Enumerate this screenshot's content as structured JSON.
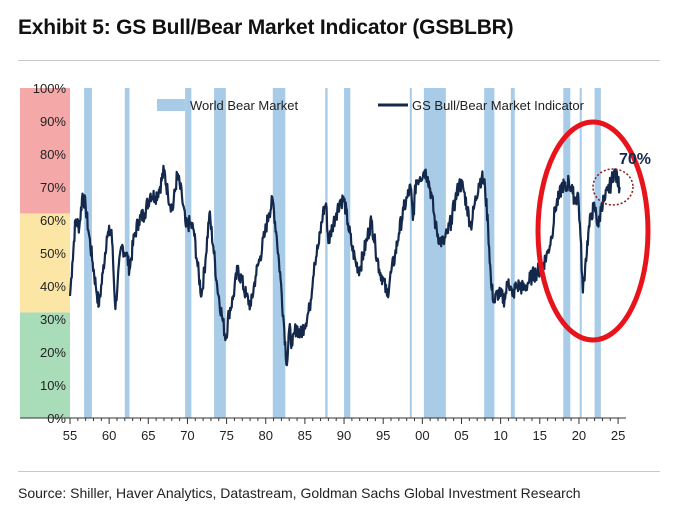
{
  "title": "Exhibit 5: GS Bull/Bear Market Indicator (GSBLBR)",
  "source": "Source: Shiller, Haver Analytics, Datastream, Goldman Sachs Global Investment Research",
  "colors": {
    "band_high": "#f4a9a8",
    "band_mid": "#fbe6a6",
    "band_low": "#a9dcb9",
    "bear_bar": "#a8cbe8",
    "line": "#14284b",
    "highlight_circle": "#e8141c",
    "small_circle": "#8b1a1a"
  },
  "chart_data": {
    "type": "line",
    "title": "Exhibit 5: GS Bull/Bear Market Indicator (GSBLBR)",
    "xlabel": "",
    "ylabel": "",
    "xlim": [
      1955,
      2025.5
    ],
    "ylim": [
      0,
      100
    ],
    "x_ticks": [
      {
        "value": 1955,
        "label": "55"
      },
      {
        "value": 1960,
        "label": "60"
      },
      {
        "value": 1965,
        "label": "65"
      },
      {
        "value": 1970,
        "label": "70"
      },
      {
        "value": 1975,
        "label": "75"
      },
      {
        "value": 1980,
        "label": "80"
      },
      {
        "value": 1985,
        "label": "85"
      },
      {
        "value": 1990,
        "label": "90"
      },
      {
        "value": 1995,
        "label": "95"
      },
      {
        "value": 2000,
        "label": "00"
      },
      {
        "value": 2005,
        "label": "05"
      },
      {
        "value": 2010,
        "label": "10"
      },
      {
        "value": 2015,
        "label": "15"
      },
      {
        "value": 2020,
        "label": "20"
      },
      {
        "value": 2025,
        "label": "25"
      }
    ],
    "y_ticks": [
      {
        "value": 0,
        "label": "0%"
      },
      {
        "value": 10,
        "label": "10%"
      },
      {
        "value": 20,
        "label": "20%"
      },
      {
        "value": 30,
        "label": "30%"
      },
      {
        "value": 40,
        "label": "40%"
      },
      {
        "value": 50,
        "label": "50%"
      },
      {
        "value": 60,
        "label": "60%"
      },
      {
        "value": 70,
        "label": "70%"
      },
      {
        "value": 80,
        "label": "80%"
      },
      {
        "value": 90,
        "label": "90%"
      },
      {
        "value": 100,
        "label": "100%"
      }
    ],
    "zones": [
      {
        "name": "bear zone",
        "from": 0,
        "to": 32
      },
      {
        "name": "neutral zone",
        "from": 32,
        "to": 62
      },
      {
        "name": "bull zone",
        "from": 62,
        "to": 100
      }
    ],
    "legend": {
      "position": "top",
      "items": [
        {
          "label": "World Bear Market",
          "kind": "bar"
        },
        {
          "label": "GS Bull/Bear Market Indicator",
          "kind": "line"
        }
      ]
    },
    "bear_markets": [
      [
        1956.8,
        1957.8
      ],
      [
        1962.0,
        1962.6
      ],
      [
        1969.7,
        1970.5
      ],
      [
        1973.4,
        1974.9
      ],
      [
        1980.9,
        1982.5
      ],
      [
        1987.6,
        1987.9
      ],
      [
        1990.0,
        1990.8
      ],
      [
        1998.4,
        1998.6
      ],
      [
        2000.2,
        2003.0
      ],
      [
        2007.9,
        2009.2
      ],
      [
        2011.3,
        2011.8
      ],
      [
        2018.0,
        2018.9
      ],
      [
        2020.1,
        2020.3
      ],
      [
        2022.0,
        2022.8
      ]
    ],
    "series": [
      {
        "name": "GS Bull/Bear Market Indicator",
        "points": [
          [
            1955.0,
            37
          ],
          [
            1955.3,
            47
          ],
          [
            1955.7,
            60
          ],
          [
            1956.2,
            58
          ],
          [
            1956.6,
            68
          ],
          [
            1957.0,
            64
          ],
          [
            1957.4,
            56
          ],
          [
            1957.9,
            47
          ],
          [
            1958.3,
            40
          ],
          [
            1958.7,
            34
          ],
          [
            1959.2,
            44
          ],
          [
            1959.7,
            55
          ],
          [
            1960.3,
            57
          ],
          [
            1960.8,
            33
          ],
          [
            1961.1,
            42
          ],
          [
            1961.6,
            52
          ],
          [
            1962.2,
            50
          ],
          [
            1962.6,
            45
          ],
          [
            1963.2,
            55
          ],
          [
            1963.8,
            60
          ],
          [
            1964.5,
            62
          ],
          [
            1965.3,
            68
          ],
          [
            1965.9,
            67
          ],
          [
            1966.5,
            70
          ],
          [
            1967.0,
            75
          ],
          [
            1967.5,
            68
          ],
          [
            1968.1,
            63
          ],
          [
            1968.7,
            74
          ],
          [
            1969.3,
            67
          ],
          [
            1969.8,
            58
          ],
          [
            1970.3,
            59
          ],
          [
            1970.8,
            57
          ],
          [
            1971.3,
            46
          ],
          [
            1971.8,
            37
          ],
          [
            1972.3,
            48
          ],
          [
            1972.8,
            62
          ],
          [
            1973.3,
            52
          ],
          [
            1973.8,
            40
          ],
          [
            1974.4,
            31
          ],
          [
            1974.9,
            24
          ],
          [
            1975.3,
            32
          ],
          [
            1975.8,
            36
          ],
          [
            1976.4,
            45
          ],
          [
            1976.9,
            42
          ],
          [
            1977.5,
            37
          ],
          [
            1978.1,
            34
          ],
          [
            1978.7,
            43
          ],
          [
            1979.3,
            49
          ],
          [
            1979.9,
            56
          ],
          [
            1980.4,
            62
          ],
          [
            1980.9,
            66
          ],
          [
            1981.4,
            55
          ],
          [
            1981.9,
            42
          ],
          [
            1982.3,
            29
          ],
          [
            1982.7,
            16
          ],
          [
            1983.0,
            27
          ],
          [
            1983.4,
            22
          ],
          [
            1983.9,
            28
          ],
          [
            1984.4,
            25
          ],
          [
            1984.9,
            28
          ],
          [
            1985.6,
            33
          ],
          [
            1986.2,
            47
          ],
          [
            1986.8,
            53
          ],
          [
            1987.3,
            62
          ],
          [
            1987.7,
            65
          ],
          [
            1988.0,
            53
          ],
          [
            1988.5,
            58
          ],
          [
            1989.0,
            62
          ],
          [
            1989.5,
            66
          ],
          [
            1990.0,
            66
          ],
          [
            1990.5,
            59
          ],
          [
            1991.0,
            52
          ],
          [
            1991.5,
            47
          ],
          [
            1992.0,
            45
          ],
          [
            1992.5,
            50
          ],
          [
            1993.0,
            55
          ],
          [
            1993.5,
            60
          ],
          [
            1994.0,
            52
          ],
          [
            1994.5,
            45
          ],
          [
            1995.0,
            42
          ],
          [
            1995.5,
            37
          ],
          [
            1996.0,
            44
          ],
          [
            1996.5,
            49
          ],
          [
            1997.0,
            56
          ],
          [
            1997.6,
            63
          ],
          [
            1998.1,
            67
          ],
          [
            1998.5,
            70
          ],
          [
            1998.8,
            60
          ],
          [
            1999.2,
            72
          ],
          [
            1999.7,
            73
          ],
          [
            2000.3,
            75
          ],
          [
            2000.7,
            73
          ],
          [
            2001.2,
            67
          ],
          [
            2001.7,
            58
          ],
          [
            2002.2,
            54
          ],
          [
            2002.7,
            53
          ],
          [
            2003.2,
            56
          ],
          [
            2003.7,
            60
          ],
          [
            2004.2,
            66
          ],
          [
            2004.7,
            71
          ],
          [
            2005.2,
            70
          ],
          [
            2005.7,
            64
          ],
          [
            2006.2,
            58
          ],
          [
            2006.7,
            65
          ],
          [
            2007.2,
            71
          ],
          [
            2007.6,
            73
          ],
          [
            2008.0,
            70
          ],
          [
            2008.4,
            58
          ],
          [
            2008.8,
            40
          ],
          [
            2009.2,
            35
          ],
          [
            2009.6,
            38
          ],
          [
            2010.0,
            37
          ],
          [
            2010.5,
            36
          ],
          [
            2011.0,
            42
          ],
          [
            2011.5,
            37
          ],
          [
            2012.0,
            40
          ],
          [
            2012.5,
            40
          ],
          [
            2013.0,
            39
          ],
          [
            2013.5,
            41
          ],
          [
            2014.0,
            43
          ],
          [
            2014.5,
            44
          ],
          [
            2015.0,
            45
          ],
          [
            2015.5,
            47
          ],
          [
            2016.0,
            50
          ],
          [
            2016.5,
            55
          ],
          [
            2017.0,
            64
          ],
          [
            2017.5,
            67
          ],
          [
            2017.9,
            71
          ],
          [
            2018.3,
            69
          ],
          [
            2018.7,
            72
          ],
          [
            2019.2,
            68
          ],
          [
            2019.6,
            66
          ],
          [
            2019.9,
            68
          ],
          [
            2020.2,
            55
          ],
          [
            2020.5,
            38
          ],
          [
            2020.8,
            46
          ],
          [
            2021.2,
            56
          ],
          [
            2021.6,
            62
          ],
          [
            2022.0,
            64
          ],
          [
            2022.5,
            58
          ],
          [
            2022.9,
            65
          ],
          [
            2023.3,
            66
          ],
          [
            2023.7,
            69
          ],
          [
            2024.1,
            71
          ],
          [
            2024.5,
            75
          ],
          [
            2024.9,
            72
          ],
          [
            2025.2,
            70
          ]
        ]
      }
    ],
    "annotation": {
      "text": "70%",
      "at_x": 2024.5,
      "at_y": 72
    }
  }
}
